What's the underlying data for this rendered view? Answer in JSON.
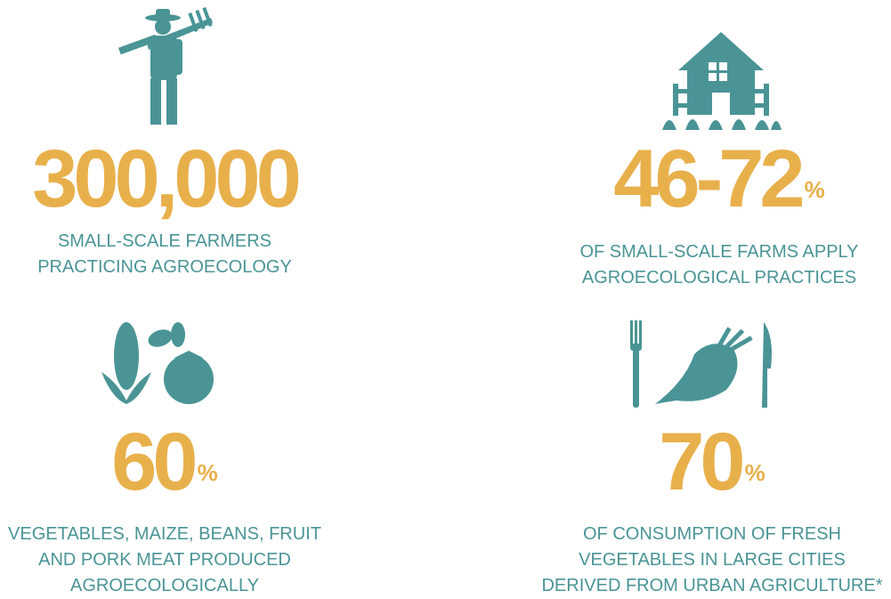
{
  "stats": [
    {
      "value": "300,000",
      "description": [
        "SMALL-SCALE FARMERS",
        "PRACTICING AGROECOLOGY"
      ]
    },
    {
      "value": "46-72",
      "unit": "%",
      "description": [
        "OF SMALL-SCALE FARMS APPLY",
        "AGROECOLOGICAL PRACTICES"
      ]
    },
    {
      "value": "60",
      "unit": "%",
      "description": [
        "VEGETABLES, MAIZE, BEANS, FRUIT",
        "AND PORK MEAT PRODUCED",
        "AGROECOLOGICALLY"
      ]
    },
    {
      "value": "70",
      "unit": "%",
      "description": [
        "OF CONSUMPTION OF FRESH",
        "VEGETABLES IN LARGE CITIES",
        "DERIVED FROM URBAN AGRICULTURE*"
      ]
    }
  ]
}
